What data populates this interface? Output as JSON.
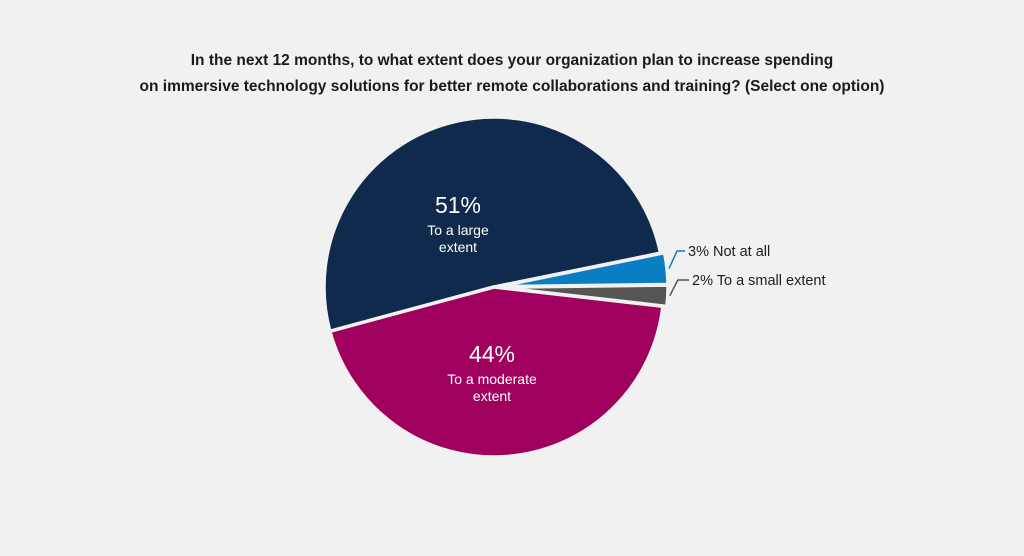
{
  "chart_data": {
    "type": "pie",
    "title_lines": [
      "In the next 12 months, to what extent does your organization plan to increase spending",
      "on immersive technology solutions for better remote collaborations and training? (Select one option)"
    ],
    "slices": [
      {
        "label": "To a large extent",
        "value": 51,
        "pct_label": "51%",
        "inside_label_lines": [
          "To a large",
          "extent"
        ],
        "color": "#0f2a4c",
        "label_position": "inside"
      },
      {
        "label": "Not at all",
        "value": 3,
        "pct_label": "3%",
        "outside_text": "3% Not at all",
        "color": "#0a7ec2",
        "leader_color": "#0a7ec2",
        "label_position": "outside"
      },
      {
        "label": "To a small extent",
        "value": 2,
        "pct_label": "2%",
        "outside_text": "2% To a small extent",
        "color": "#555555",
        "leader_color": "#555555",
        "label_position": "outside"
      },
      {
        "label": "To a moderate extent",
        "value": 44,
        "pct_label": "44%",
        "inside_label_lines": [
          "To a moderate",
          "extent"
        ],
        "color": "#a0005e",
        "label_position": "inside"
      }
    ]
  }
}
